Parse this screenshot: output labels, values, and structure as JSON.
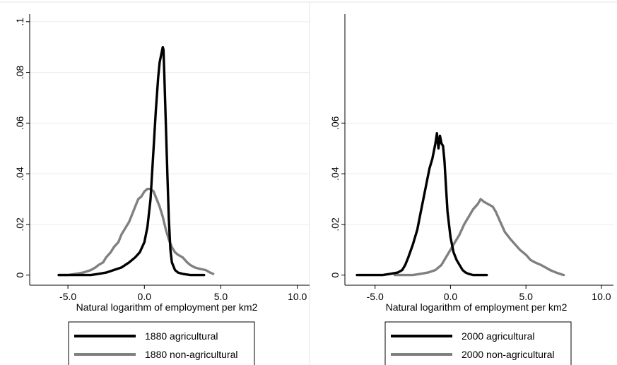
{
  "chart_data": [
    {
      "type": "line",
      "title": "",
      "xlabel": "Natural logarithm of employment per km2",
      "ylabel": "",
      "xlim": [
        -7.5,
        10.8
      ],
      "ylim": [
        -0.004,
        0.103
      ],
      "x_ticks": [
        -5.0,
        0.0,
        5.0,
        10.0
      ],
      "x_tick_labels": [
        "-5.0",
        "0.0",
        "5.0",
        "10.0"
      ],
      "y_ticks": [
        0,
        0.02,
        0.04,
        0.06,
        0.08,
        0.1
      ],
      "y_tick_labels": [
        "0",
        ".02",
        ".04",
        ".06",
        ".08",
        ".1"
      ],
      "grid": "horizontal",
      "legend_position": "below",
      "series": [
        {
          "name": "1880 agricultural",
          "color": "#000000",
          "x": [
            -5.6,
            -5.0,
            -4.5,
            -4.0,
            -3.5,
            -3.0,
            -2.5,
            -2.0,
            -1.5,
            -1.0,
            -0.6,
            -0.3,
            0.0,
            0.2,
            0.4,
            0.6,
            0.75,
            0.9,
            1.0,
            1.1,
            1.2,
            1.25,
            1.3,
            1.4,
            1.5,
            1.6,
            1.7,
            1.8,
            2.0,
            2.2,
            2.5,
            3.0,
            3.5,
            3.9
          ],
          "y": [
            0,
            0,
            0,
            0,
            0,
            0.0005,
            0.001,
            0.002,
            0.003,
            0.005,
            0.007,
            0.009,
            0.013,
            0.019,
            0.03,
            0.05,
            0.065,
            0.078,
            0.084,
            0.087,
            0.09,
            0.089,
            0.08,
            0.06,
            0.04,
            0.022,
            0.01,
            0.005,
            0.002,
            0.001,
            0.0005,
            0,
            0,
            0
          ]
        },
        {
          "name": "1880 non-agricultural",
          "color": "#808080",
          "x": [
            -5.6,
            -5.0,
            -4.5,
            -4.0,
            -3.5,
            -3.2,
            -3.0,
            -2.7,
            -2.5,
            -2.2,
            -2.0,
            -1.7,
            -1.5,
            -1.3,
            -1.0,
            -0.8,
            -0.6,
            -0.4,
            -0.2,
            0.0,
            0.2,
            0.4,
            0.6,
            0.8,
            1.0,
            1.2,
            1.4,
            1.6,
            1.8,
            2.0,
            2.2,
            2.5,
            2.8,
            3.0,
            3.3,
            3.6,
            4.0,
            4.3,
            4.5
          ],
          "y": [
            0,
            0,
            0.0005,
            0.001,
            0.002,
            0.003,
            0.004,
            0.005,
            0.007,
            0.009,
            0.011,
            0.013,
            0.016,
            0.018,
            0.021,
            0.024,
            0.027,
            0.03,
            0.031,
            0.033,
            0.034,
            0.034,
            0.033,
            0.03,
            0.027,
            0.023,
            0.018,
            0.014,
            0.011,
            0.009,
            0.008,
            0.007,
            0.005,
            0.004,
            0.003,
            0.0025,
            0.002,
            0.001,
            0.0005
          ]
        }
      ]
    },
    {
      "type": "line",
      "title": "",
      "xlabel": "Natural logarithm of employment per km2",
      "ylabel": "",
      "xlim": [
        -7.0,
        10.8
      ],
      "ylim": [
        -0.004,
        0.103
      ],
      "x_ticks": [
        -5.0,
        0.0,
        5.0,
        10.0
      ],
      "x_tick_labels": [
        "-5.0",
        "0.0",
        "5.0",
        "10.0"
      ],
      "y_ticks": [
        0,
        0.02,
        0.04,
        0.06
      ],
      "y_tick_labels": [
        "0",
        ".02",
        ".04",
        ".06"
      ],
      "grid": "horizontal",
      "legend_position": "below",
      "series": [
        {
          "name": "2000 agricultural",
          "color": "#000000",
          "x": [
            -6.2,
            -5.5,
            -5.0,
            -4.5,
            -4.0,
            -3.5,
            -3.2,
            -3.0,
            -2.8,
            -2.5,
            -2.2,
            -2.0,
            -1.8,
            -1.6,
            -1.4,
            -1.2,
            -1.0,
            -0.9,
            -0.8,
            -0.7,
            -0.6,
            -0.5,
            -0.4,
            -0.3,
            -0.2,
            0.0,
            0.2,
            0.4,
            0.6,
            0.8,
            1.0,
            1.2,
            1.5,
            2.0,
            2.4
          ],
          "y": [
            0,
            0,
            0,
            0,
            0.0005,
            0.001,
            0.002,
            0.004,
            0.007,
            0.012,
            0.018,
            0.024,
            0.03,
            0.036,
            0.042,
            0.046,
            0.052,
            0.056,
            0.05,
            0.055,
            0.052,
            0.051,
            0.045,
            0.035,
            0.025,
            0.015,
            0.009,
            0.006,
            0.004,
            0.002,
            0.001,
            0.0005,
            0,
            0,
            0
          ]
        },
        {
          "name": "2000 non-agricultural",
          "color": "#808080",
          "x": [
            -3.7,
            -3.0,
            -2.5,
            -2.0,
            -1.5,
            -1.0,
            -0.6,
            -0.3,
            0.0,
            0.3,
            0.6,
            0.9,
            1.2,
            1.5,
            1.8,
            2.0,
            2.2,
            2.5,
            2.8,
            3.0,
            3.3,
            3.6,
            4.0,
            4.3,
            4.6,
            5.0,
            5.3,
            5.6,
            6.0,
            6.3,
            6.6,
            7.0,
            7.5
          ],
          "y": [
            0,
            0,
            0,
            0.0005,
            0.001,
            0.002,
            0.004,
            0.007,
            0.01,
            0.013,
            0.016,
            0.02,
            0.023,
            0.026,
            0.028,
            0.03,
            0.029,
            0.028,
            0.027,
            0.025,
            0.021,
            0.017,
            0.014,
            0.012,
            0.01,
            0.008,
            0.006,
            0.005,
            0.004,
            0.003,
            0.002,
            0.001,
            0
          ]
        }
      ]
    }
  ]
}
